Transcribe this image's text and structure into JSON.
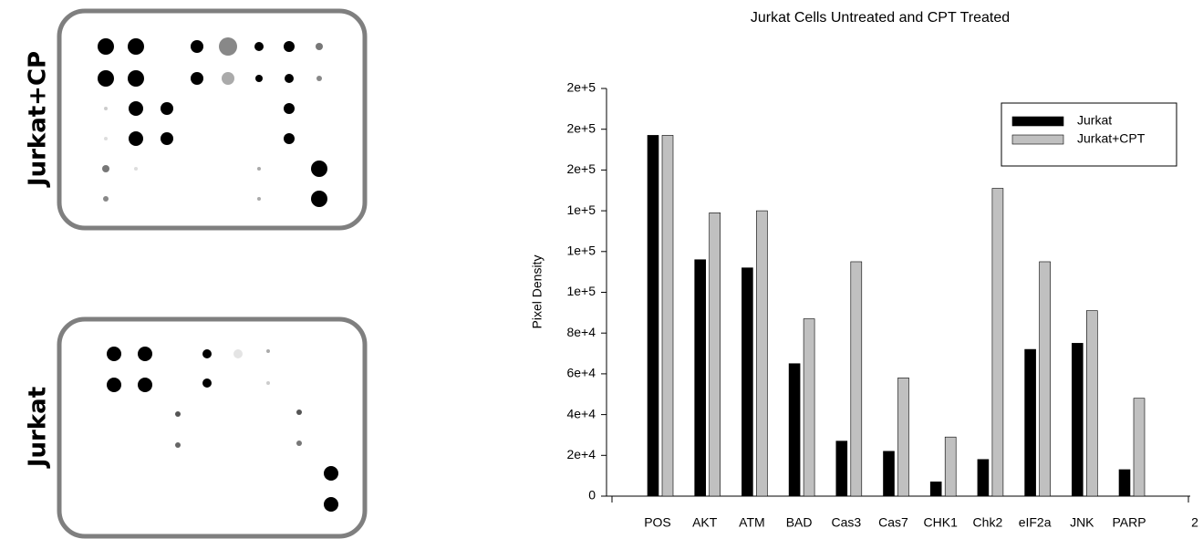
{
  "blots": [
    {
      "label": "Jurkat+CP"
    },
    {
      "label": "Jurkat"
    }
  ],
  "chart_data": {
    "type": "bar",
    "title": "Jurkat Cells Untreated and CPT Treated",
    "y_label": "Pixel Density",
    "categories": [
      "POS",
      "AKT",
      "ATM",
      "BAD",
      "Cas3",
      "Cas7",
      "CHK1",
      "Chk2",
      "eIF2a",
      "JNK",
      "PARP",
      "2"
    ],
    "series": [
      {
        "name": "Jurkat",
        "color": "#000000",
        "values": [
          177000,
          116000,
          112000,
          65000,
          27000,
          22000,
          7000,
          18000,
          72000,
          75000,
          13000,
          null
        ]
      },
      {
        "name": "Jurkat+CPT",
        "color": "#c0c0c0",
        "values": [
          177000,
          139000,
          140000,
          87000,
          115000,
          58000,
          29000,
          151000,
          115000,
          91000,
          48000,
          null
        ]
      }
    ],
    "ylim": [
      0,
      200000
    ],
    "yticks": [
      0,
      {
        "value": 20000,
        "label": "2e+4"
      },
      {
        "value": 40000,
        "label": "4e+4"
      },
      {
        "value": 60000,
        "label": "6e+4"
      },
      {
        "value": 80000,
        "label": "8e+4"
      },
      {
        "value": 100000,
        "label": "1e+5"
      },
      {
        "value": 120000,
        "label": "1e+5"
      },
      {
        "value": 140000,
        "label": "1e+5"
      },
      {
        "value": 160000,
        "label": "2e+5"
      },
      {
        "value": 180000,
        "label": "2e+5"
      },
      {
        "value": 200000,
        "label": "2e+5"
      }
    ],
    "legend": "upper right",
    "grid": false
  }
}
